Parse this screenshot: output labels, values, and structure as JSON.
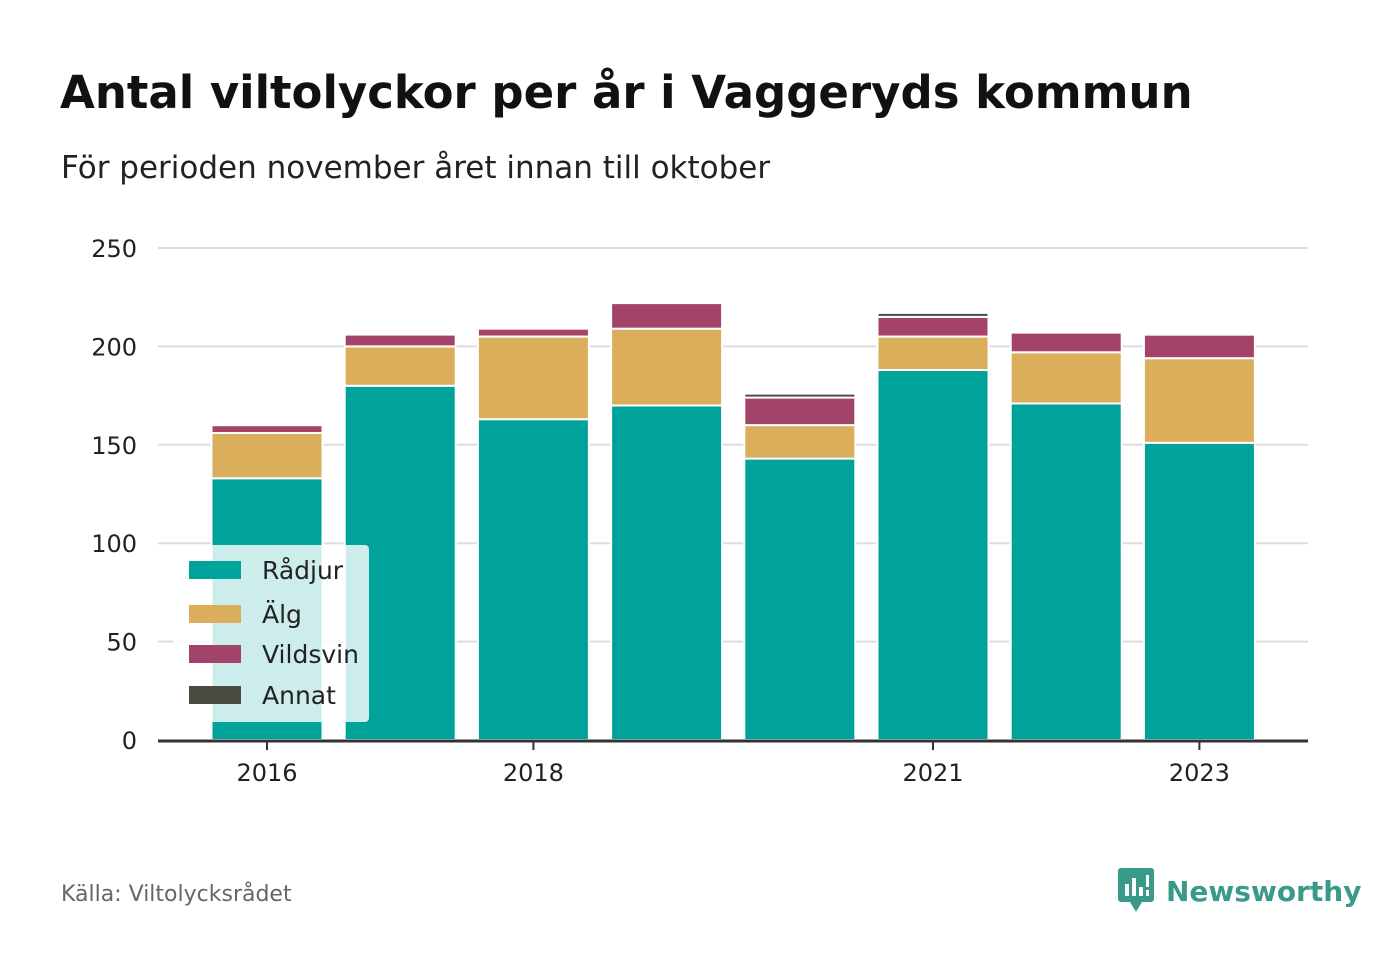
{
  "title": "Antal viltolyckor per år i Vaggeryds kommun",
  "subtitle": "För perioden november året innan till oktober",
  "source": "Källa: Viltolycksrådet",
  "brand": {
    "name": "Newsworthy",
    "icon": "newsworthy-logo-icon",
    "color": "#3a9a8a"
  },
  "chart_data": {
    "type": "bar",
    "stacked": true,
    "categories": [
      "2016",
      "2017",
      "2018",
      "2019",
      "2020",
      "2021",
      "2022",
      "2023"
    ],
    "x_tick_labels": [
      "2016",
      "",
      "2018",
      "",
      "",
      "2021",
      "",
      "2023"
    ],
    "series": [
      {
        "name": "Rådjur",
        "color": "#00a39a",
        "values": [
          133,
          180,
          163,
          170,
          143,
          188,
          171,
          151
        ]
      },
      {
        "name": "Älg",
        "color": "#dbae5b",
        "values": [
          23,
          20,
          42,
          39,
          17,
          17,
          26,
          43
        ]
      },
      {
        "name": "Vildsvin",
        "color": "#a4436a",
        "values": [
          4,
          6,
          4,
          13,
          14,
          10,
          10,
          12
        ]
      },
      {
        "name": "Annat",
        "color": "#4a4a40",
        "values": [
          1,
          0,
          0,
          0,
          2,
          2,
          0,
          1
        ]
      }
    ],
    "y_ticks": [
      0,
      50,
      100,
      150,
      200,
      250
    ],
    "ylim": [
      0,
      250
    ],
    "grid": true,
    "legend_position": "bottom-left"
  }
}
